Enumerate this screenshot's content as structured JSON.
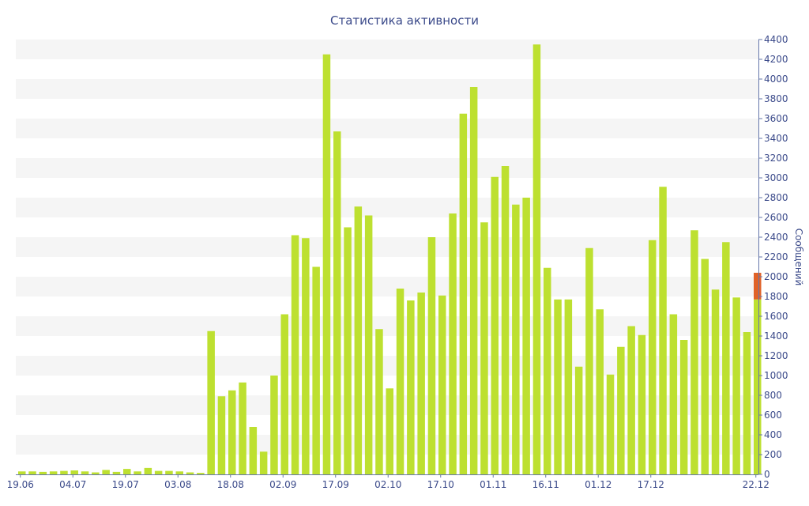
{
  "chart_data": {
    "type": "bar",
    "title": "Статистика активности",
    "xlabel": "",
    "ylabel": "Сообщений",
    "ylim": [
      0,
      4400
    ],
    "y_ticks": [
      0,
      200,
      400,
      600,
      800,
      1000,
      1200,
      1400,
      1600,
      1800,
      2000,
      2200,
      2400,
      2600,
      2800,
      3000,
      3200,
      3400,
      3600,
      3800,
      4000,
      4200,
      4400
    ],
    "x_tick_labels": [
      "19.06",
      "04.07",
      "19.07",
      "03.08",
      "18.08",
      "02.09",
      "17.09",
      "02.10",
      "17.10",
      "01.11",
      "16.11",
      "01.12",
      "17.12",
      "22.12"
    ],
    "x_tick_label_bars": [
      0,
      5,
      10,
      15,
      20,
      25,
      30,
      35,
      40,
      45,
      50,
      55,
      60,
      70
    ],
    "band_step": 200,
    "grid": "alternating horizontal bands",
    "y_axis_position": "right",
    "colors": {
      "bar": "#bde030",
      "highlight": "#e06228",
      "band": "#f5f5f5",
      "axis": "#6677aa",
      "text": "#3b4a8a"
    },
    "series": [
      {
        "values": [
          30,
          30,
          25,
          30,
          35,
          40,
          30,
          20,
          45,
          25,
          55,
          30,
          65,
          35,
          35,
          30,
          20,
          15,
          1450,
          790,
          850,
          930,
          480,
          230,
          1000,
          1620,
          2420,
          2390,
          2100,
          4250,
          3470,
          2500,
          2710,
          2620,
          1470,
          870,
          1880,
          1760,
          1840,
          2400,
          1810,
          2640,
          3650,
          3920,
          2550,
          3010,
          3120,
          2730,
          2800,
          4350,
          2090,
          1770,
          1770,
          1090,
          2290,
          1670,
          1010,
          1290,
          1500,
          1410,
          2370,
          2910,
          1620,
          1360,
          2470,
          2180,
          1870,
          2350,
          1790,
          1440,
          1770
        ]
      },
      {
        "values": [
          0,
          0,
          0,
          0,
          0,
          0,
          0,
          0,
          0,
          0,
          0,
          0,
          0,
          0,
          0,
          0,
          0,
          0,
          0,
          0,
          0,
          0,
          0,
          0,
          0,
          0,
          0,
          0,
          0,
          0,
          0,
          0,
          0,
          0,
          0,
          0,
          0,
          0,
          0,
          0,
          0,
          0,
          0,
          0,
          0,
          0,
          0,
          0,
          0,
          0,
          0,
          0,
          0,
          0,
          0,
          0,
          0,
          0,
          0,
          0,
          0,
          0,
          0,
          0,
          0,
          0,
          0,
          0,
          0,
          0,
          270
        ]
      }
    ]
  }
}
